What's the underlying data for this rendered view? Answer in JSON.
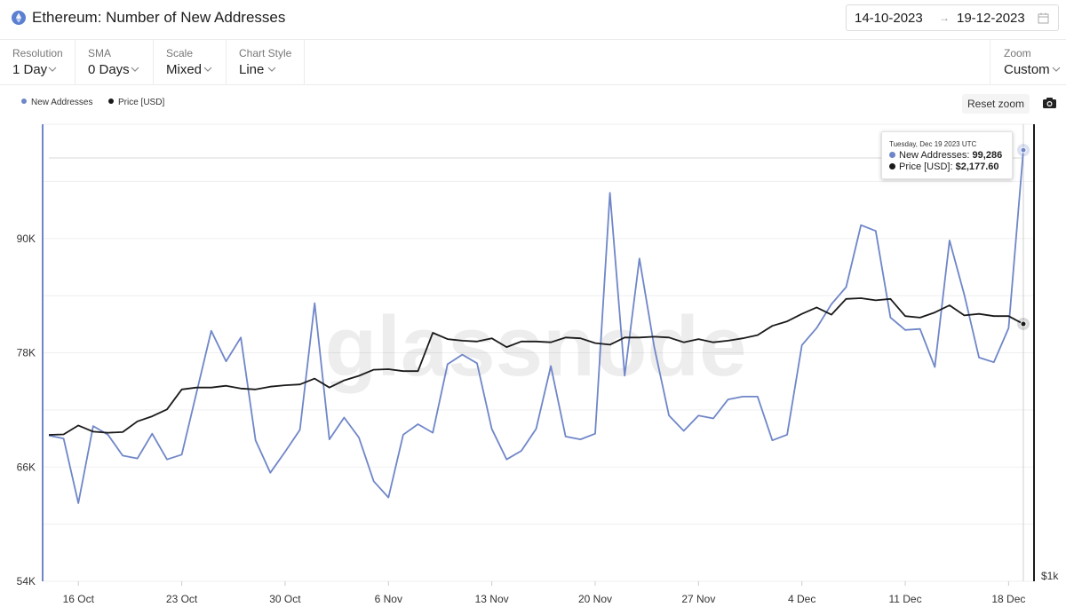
{
  "header": {
    "title": "Ethereum: Number of New Addresses",
    "date_from": "14-10-2023",
    "date_to": "19-12-2023",
    "date_arrow": "→"
  },
  "controls": {
    "resolution": {
      "label": "Resolution",
      "value": "1 Day"
    },
    "sma": {
      "label": "SMA",
      "value": "0 Days"
    },
    "scale": {
      "label": "Scale",
      "value": "Mixed"
    },
    "chart_style": {
      "label": "Chart Style",
      "value": "Line"
    },
    "zoom": {
      "label": "Zoom",
      "value": "Custom"
    }
  },
  "toolbar": {
    "reset_zoom": "Reset zoom"
  },
  "watermark": "glassnode",
  "tooltip": {
    "date": "Tuesday, Dec 19 2023 UTC",
    "rows": [
      {
        "label": "New Addresses:",
        "value": "99,286"
      },
      {
        "label": "Price [USD]:",
        "value": "$2,177.60"
      }
    ]
  },
  "colors": {
    "new_addresses": "#6f86c8",
    "price": "#1a1a1a",
    "accent": "#5b7fd1"
  },
  "chart_data": {
    "type": "line",
    "x": [
      "2023-10-14",
      "2023-10-15",
      "2023-10-16",
      "2023-10-17",
      "2023-10-18",
      "2023-10-19",
      "2023-10-20",
      "2023-10-21",
      "2023-10-22",
      "2023-10-23",
      "2023-10-24",
      "2023-10-25",
      "2023-10-26",
      "2023-10-27",
      "2023-10-28",
      "2023-10-29",
      "2023-10-30",
      "2023-10-31",
      "2023-11-01",
      "2023-11-02",
      "2023-11-03",
      "2023-11-04",
      "2023-11-05",
      "2023-11-06",
      "2023-11-07",
      "2023-11-08",
      "2023-11-09",
      "2023-11-10",
      "2023-11-11",
      "2023-11-12",
      "2023-11-13",
      "2023-11-14",
      "2023-11-15",
      "2023-11-16",
      "2023-11-17",
      "2023-11-18",
      "2023-11-19",
      "2023-11-20",
      "2023-11-21",
      "2023-11-22",
      "2023-11-23",
      "2023-11-24",
      "2023-11-25",
      "2023-11-26",
      "2023-11-27",
      "2023-11-28",
      "2023-11-29",
      "2023-11-30",
      "2023-12-01",
      "2023-12-02",
      "2023-12-03",
      "2023-12-04",
      "2023-12-05",
      "2023-12-06",
      "2023-12-07",
      "2023-12-08",
      "2023-12-09",
      "2023-12-10",
      "2023-12-11",
      "2023-12-12",
      "2023-12-13",
      "2023-12-14",
      "2023-12-15",
      "2023-12-16",
      "2023-12-17",
      "2023-12-18",
      "2023-12-19"
    ],
    "x_tick_labels": [
      {
        "date": "2023-10-16",
        "label": "16 Oct"
      },
      {
        "date": "2023-10-23",
        "label": "23 Oct"
      },
      {
        "date": "2023-10-30",
        "label": "30 Oct"
      },
      {
        "date": "2023-11-06",
        "label": "6 Nov"
      },
      {
        "date": "2023-11-13",
        "label": "13 Nov"
      },
      {
        "date": "2023-11-20",
        "label": "20 Nov"
      },
      {
        "date": "2023-11-27",
        "label": "27 Nov"
      },
      {
        "date": "2023-12-04",
        "label": "4 Dec"
      },
      {
        "date": "2023-12-11",
        "label": "11 Dec"
      },
      {
        "date": "2023-12-18",
        "label": "18 Dec"
      }
    ],
    "y_left": {
      "ticks": [
        54000,
        66000,
        78000,
        90000
      ],
      "tick_labels": [
        "54K",
        "66K",
        "78K",
        "90K"
      ],
      "range": [
        54000,
        102000
      ]
    },
    "y_right": {
      "ticks": [
        1000
      ],
      "tick_labels": [
        "$1k"
      ],
      "scale": "log"
    },
    "series": [
      {
        "name": "New Addresses",
        "axis": "left",
        "values": [
          69300,
          69000,
          62200,
          70300,
          69400,
          67200,
          66900,
          69500,
          66800,
          67300,
          73800,
          80300,
          77100,
          79600,
          68800,
          65400,
          67600,
          69900,
          83200,
          68900,
          71200,
          69100,
          64500,
          62800,
          69400,
          70500,
          69600,
          76800,
          77800,
          76900,
          70000,
          66800,
          67700,
          70000,
          76600,
          69200,
          68900,
          69500,
          94800,
          75600,
          87900,
          78600,
          71400,
          69800,
          71400,
          71100,
          73100,
          73400,
          73400,
          68800,
          69400,
          78800,
          80600,
          83100,
          84900,
          91400,
          90800,
          81700,
          80400,
          80500,
          76500,
          89800,
          84100,
          77500,
          77000,
          80600,
          99286
        ]
      },
      {
        "name": "Price [USD]",
        "axis": "right",
        "values": [
          1555,
          1557,
          1600,
          1570,
          1565,
          1568,
          1620,
          1645,
          1680,
          1785,
          1795,
          1795,
          1805,
          1790,
          1785,
          1800,
          1808,
          1812,
          1845,
          1795,
          1835,
          1860,
          1895,
          1898,
          1887,
          1887,
          2120,
          2080,
          2070,
          2065,
          2085,
          2030,
          2065,
          2065,
          2060,
          2090,
          2085,
          2055,
          2045,
          2090,
          2090,
          2095,
          2090,
          2060,
          2080,
          2060,
          2070,
          2085,
          2105,
          2165,
          2195,
          2245,
          2290,
          2240,
          2350,
          2355,
          2340,
          2350,
          2230,
          2220,
          2255,
          2305,
          2235,
          2245,
          2230,
          2230,
          2177.6
        ]
      }
    ],
    "legend": [
      "New Addresses",
      "Price [USD]"
    ],
    "legend_position": "top-left",
    "grid": true
  }
}
